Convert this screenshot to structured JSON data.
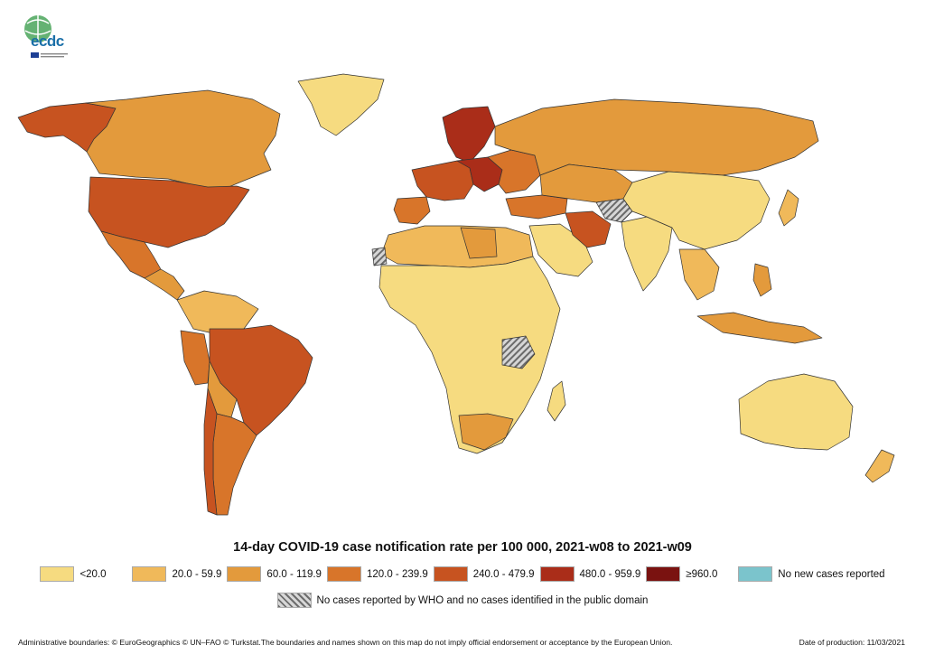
{
  "logo": {
    "text": "ecdc"
  },
  "map": {
    "title": "14-day COVID-19 case notification rate per 100 000, 2021-w08 to 2021-w09",
    "legend": [
      {
        "label": "<20.0",
        "color": "#f6db80"
      },
      {
        "label": "20.0 - 59.9",
        "color": "#f0b95a"
      },
      {
        "label": "60.0 - 119.9",
        "color": "#e39a3c"
      },
      {
        "label": "120.0 - 239.9",
        "color": "#d8752a"
      },
      {
        "label": "240.0 - 479.9",
        "color": "#c75320"
      },
      {
        "label": "480.0 - 959.9",
        "color": "#aa2d19"
      },
      {
        "label": "≥960.0",
        "color": "#7a1210"
      },
      {
        "label": "No new cases reported",
        "color": "#7bc4cc"
      }
    ],
    "no_data_label": "No cases reported by WHO and no cases identified in the public domain"
  },
  "footer": {
    "boundaries": "Administrative boundaries: © EuroGeographics © UN–FAO © Turkstat.The boundaries and names shown on this map do not imply official endorsement or acceptance by the European Union.",
    "date": "Date of production: 11/03/2021"
  }
}
